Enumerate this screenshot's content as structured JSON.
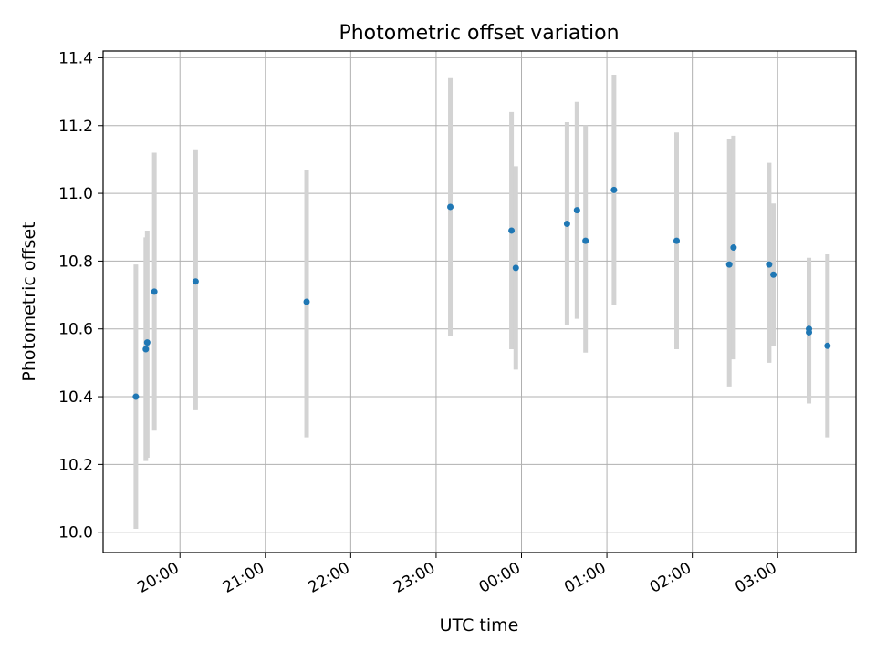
{
  "chart_data": {
    "type": "scatter",
    "title": "Photometric offset variation",
    "xlabel": "UTC time",
    "ylabel": "Photometric offset",
    "x_ticks": [
      "20:00",
      "21:00",
      "22:00",
      "23:00",
      "00:00",
      "01:00",
      "02:00",
      "03:00"
    ],
    "y_ticks": [
      "10.0",
      "10.2",
      "10.4",
      "10.6",
      "10.8",
      "11.0",
      "11.2",
      "11.4"
    ],
    "xlim": [
      "19:06",
      "03:55"
    ],
    "ylim": [
      9.94,
      11.42
    ],
    "grid": true,
    "colors": {
      "marker": "#1f77b4",
      "errorbar": "#d3d3d3",
      "grid": "#b0b0b0"
    },
    "points": [
      {
        "t": "19:29",
        "y": 10.4,
        "ylo": 10.01,
        "yhi": 10.79
      },
      {
        "t": "19:36",
        "y": 10.54,
        "ylo": 10.21,
        "yhi": 10.87
      },
      {
        "t": "19:37",
        "y": 10.56,
        "ylo": 10.22,
        "yhi": 10.89
      },
      {
        "t": "19:42",
        "y": 10.71,
        "ylo": 10.3,
        "yhi": 11.12
      },
      {
        "t": "20:11",
        "y": 10.74,
        "ylo": 10.36,
        "yhi": 11.13
      },
      {
        "t": "21:29",
        "y": 10.68,
        "ylo": 10.28,
        "yhi": 11.07
      },
      {
        "t": "23:10",
        "y": 10.96,
        "ylo": 10.58,
        "yhi": 11.34
      },
      {
        "t": "23:53",
        "y": 10.89,
        "ylo": 10.54,
        "yhi": 11.24
      },
      {
        "t": "23:56",
        "y": 10.78,
        "ylo": 10.48,
        "yhi": 11.08
      },
      {
        "t": "00:32",
        "y": 10.91,
        "ylo": 10.61,
        "yhi": 11.21
      },
      {
        "t": "00:39",
        "y": 10.95,
        "ylo": 10.63,
        "yhi": 11.27
      },
      {
        "t": "00:45",
        "y": 10.86,
        "ylo": 10.53,
        "yhi": 11.2
      },
      {
        "t": "01:05",
        "y": 11.01,
        "ylo": 10.67,
        "yhi": 11.35
      },
      {
        "t": "01:49",
        "y": 10.86,
        "ylo": 10.54,
        "yhi": 11.18
      },
      {
        "t": "02:26",
        "y": 10.79,
        "ylo": 10.43,
        "yhi": 11.16
      },
      {
        "t": "02:29",
        "y": 10.84,
        "ylo": 10.51,
        "yhi": 11.17
      },
      {
        "t": "02:54",
        "y": 10.79,
        "ylo": 10.5,
        "yhi": 11.09
      },
      {
        "t": "02:57",
        "y": 10.76,
        "ylo": 10.55,
        "yhi": 10.97
      },
      {
        "t": "03:22",
        "y": 10.6,
        "ylo": 10.39,
        "yhi": 10.81
      },
      {
        "t": "03:22",
        "y": 10.59,
        "ylo": 10.38,
        "yhi": 10.8
      },
      {
        "t": "03:35",
        "y": 10.55,
        "ylo": 10.28,
        "yhi": 10.82
      }
    ]
  }
}
